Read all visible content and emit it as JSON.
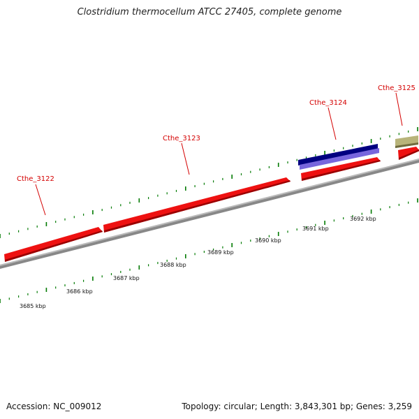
{
  "header": {
    "title": "Clostridium thermocellum ATCC 27405, complete genome"
  },
  "footer": {
    "accession": "Accession: NC_009012",
    "summary": "Topology: circular; Length: 3,843,301 bp; Genes: 3,259"
  },
  "colors": {
    "gene_forward": "#ee1111",
    "gene_forward_dark": "#990000",
    "track_other": "#b8b47a",
    "feature_dark": "#000080",
    "feature_light": "#7766dd",
    "backbone": "#888888",
    "scale_ticks": "#007a00",
    "label_text": "#d40000"
  },
  "genes": [
    {
      "name": "Cthe_3122"
    },
    {
      "name": "Cthe_3123"
    },
    {
      "name": "Cthe_3124"
    },
    {
      "name": "Cthe_3125"
    }
  ],
  "scale": {
    "ticks": [
      {
        "label": "3685 kbp"
      },
      {
        "label": "3686 kbp"
      },
      {
        "label": "3687 kbp"
      },
      {
        "label": "3688 kbp"
      },
      {
        "label": "3689 kbp"
      },
      {
        "label": "3690 kbp"
      },
      {
        "label": "3691 kbp"
      },
      {
        "label": "3692 kbp"
      }
    ]
  }
}
